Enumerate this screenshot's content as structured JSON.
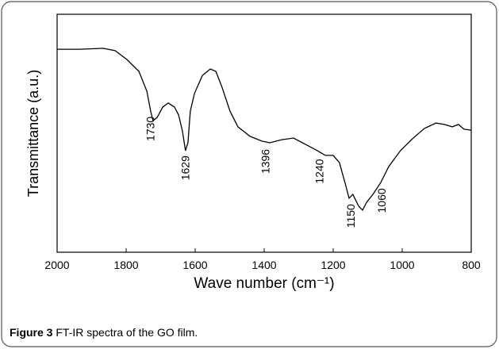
{
  "chart_data": {
    "type": "line",
    "xlabel": "Wave number (cm⁻¹)",
    "ylabel": "Transmittance (a.u.)",
    "x": [
      2000,
      1936,
      1867,
      1832,
      1798,
      1763,
      1740,
      1729,
      1722,
      1710,
      1694,
      1678,
      1660,
      1648,
      1637,
      1628,
      1621,
      1614,
      1602,
      1579,
      1556,
      1540,
      1522,
      1499,
      1476,
      1441,
      1407,
      1384,
      1349,
      1315,
      1280,
      1246,
      1223,
      1200,
      1182,
      1166,
      1154,
      1143,
      1126,
      1115,
      1103,
      1085,
      1062,
      1039,
      1005,
      970,
      936,
      902,
      878,
      855,
      837,
      821,
      800
    ],
    "values": [
      85.3,
      85.3,
      85.7,
      84.7,
      81,
      76,
      67.7,
      59.3,
      55.3,
      56.7,
      61,
      62.7,
      61,
      57.7,
      51,
      42.7,
      46,
      59.3,
      66.7,
      74.3,
      77,
      76,
      69.3,
      59.3,
      52.7,
      48.7,
      46.7,
      46,
      47.3,
      48,
      45.3,
      42.7,
      40.7,
      40.7,
      37.7,
      29.3,
      22.7,
      24.3,
      19.3,
      17.7,
      21,
      24.3,
      29.3,
      36,
      42.7,
      47.7,
      52,
      54.3,
      53.7,
      52.7,
      53.7,
      51.7,
      51.3
    ],
    "color": "#000000",
    "xlim": [
      2000,
      800
    ],
    "xticks": [
      2000,
      1800,
      1600,
      1400,
      1200,
      1000,
      800
    ],
    "ylim": [
      0,
      100
    ],
    "annotations": [
      {
        "text": "1730",
        "x": 1730
      },
      {
        "text": "1629",
        "x": 1629
      },
      {
        "text": "1396",
        "x": 1396
      },
      {
        "text": "1240",
        "x": 1240
      },
      {
        "text": "1150",
        "x": 1150
      },
      {
        "text": "1060",
        "x": 1060
      }
    ]
  },
  "caption": {
    "label": "Figure 3",
    "text": "FT-IR spectra of the GO film."
  }
}
